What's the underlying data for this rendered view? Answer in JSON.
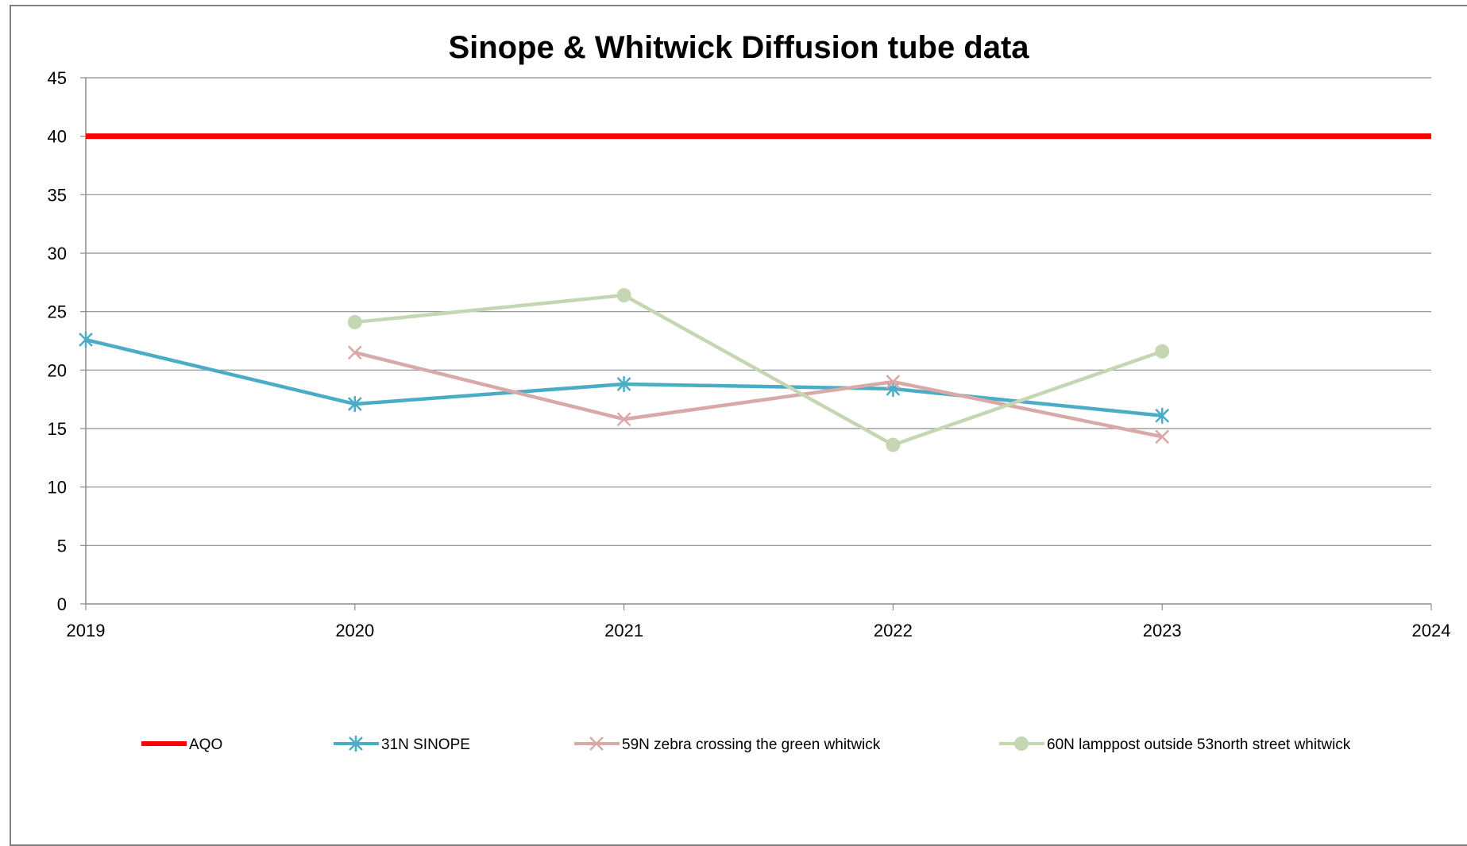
{
  "chart_data": {
    "type": "line",
    "title": "Sinope & Whitwick Diffusion tube data",
    "xlabel": "",
    "ylabel": "",
    "xlim": [
      2019,
      2024
    ],
    "ylim": [
      0,
      45
    ],
    "x_ticks": [
      "2019",
      "2020",
      "2021",
      "2022",
      "2023",
      "2024"
    ],
    "y_ticks": [
      "0",
      "5",
      "10",
      "15",
      "20",
      "25",
      "30",
      "35",
      "40",
      "45"
    ],
    "grid": true,
    "legend_position": "bottom",
    "series": [
      {
        "name": "AQO",
        "color": "#ff0000",
        "marker": "none",
        "x": [
          2019,
          2024
        ],
        "y": [
          40,
          40
        ]
      },
      {
        "name": "31N SINOPE",
        "color": "#4bacc6",
        "marker": "star",
        "x": [
          2019,
          2020,
          2021,
          2022,
          2023
        ],
        "y": [
          22.6,
          17.1,
          18.8,
          18.4,
          16.1
        ]
      },
      {
        "name": "59N zebra crossing the green whitwick",
        "color": "#d9a9a8",
        "marker": "x",
        "x": [
          2020,
          2021,
          2022,
          2023
        ],
        "y": [
          21.5,
          15.8,
          19.0,
          14.3
        ]
      },
      {
        "name": "60N lamppost outside 53north street whitwick",
        "color": "#c4d7b2",
        "marker": "circle",
        "x": [
          2020,
          2021,
          2022,
          2023
        ],
        "y": [
          24.1,
          26.4,
          13.6,
          21.6
        ]
      }
    ]
  }
}
